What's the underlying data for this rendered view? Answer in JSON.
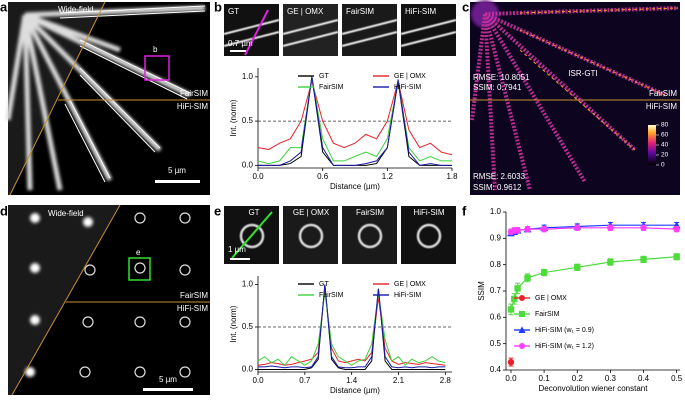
{
  "panels": {
    "a": {
      "label": "a",
      "wide_field": "Wide-field",
      "roi": "b",
      "top": "FairSIM",
      "bottom": "HiFi-SIM",
      "scale": "5 µm"
    },
    "b": {
      "label": "b",
      "tiles": [
        "GT",
        "GE | OMX",
        "FairSIM",
        "HiFi-SIM"
      ],
      "scale": "0.7 µm"
    },
    "c": {
      "label": "c",
      "title": "ISR-GTI",
      "top_rmse": "RMSE: 10.8051",
      "top_ssim": "SSIM: 0.7941",
      "top": "FairSIM",
      "bottom": "HiFi-SIM",
      "colorbar_ticks": [
        0,
        20,
        40,
        60,
        80
      ],
      "bottom_rmse": "RMSE: 2.6033",
      "bottom_ssim": "SSIM: 0.9612"
    },
    "d": {
      "label": "d",
      "wide_field": "Wide-field",
      "roi": "e",
      "top": "FairSIM",
      "bottom": "HiFi-SIM",
      "scale": "5 µm"
    },
    "e": {
      "label": "e",
      "tiles": [
        "GT",
        "GE | OMX",
        "FairSIM",
        "HiFi-SIM"
      ],
      "scale": "1 µm"
    },
    "f": {
      "label": "f"
    }
  },
  "chart_data": [
    {
      "type": "line",
      "xlabel": "Distance (µm)",
      "ylabel": "Int. (norm)",
      "legend": "upper center",
      "x": [
        0,
        0.1,
        0.2,
        0.3,
        0.4,
        0.5,
        0.6,
        0.7,
        0.8,
        0.9,
        1.0,
        1.1,
        1.2,
        1.3,
        1.4,
        1.5,
        1.6,
        1.7,
        1.8
      ],
      "series": [
        {
          "name": "GT",
          "color": "#000000",
          "values": [
            0,
            0,
            0,
            0.02,
            0.1,
            1.0,
            0.15,
            0,
            0,
            0,
            0,
            0.02,
            0.2,
            0.95,
            0.1,
            0,
            0,
            0,
            0
          ]
        },
        {
          "name": "GE | OMX",
          "color": "#e8212a",
          "values": [
            0.2,
            0.18,
            0.25,
            0.3,
            0.5,
            0.95,
            0.5,
            0.25,
            0.2,
            0.25,
            0.35,
            0.3,
            0.5,
            0.95,
            0.4,
            0.2,
            0.25,
            0.15,
            0.12
          ]
        },
        {
          "name": "FairSIM",
          "color": "#3bd23b",
          "values": [
            0.05,
            0.02,
            0.05,
            0.2,
            0.2,
            1.0,
            0.3,
            0.05,
            0.05,
            0.1,
            0.15,
            0.1,
            0.3,
            0.95,
            0.2,
            0.05,
            0.1,
            0.05,
            0.05
          ]
        },
        {
          "name": "HiFi-SIM",
          "color": "#1a1aa8",
          "values": [
            0,
            0,
            0,
            0.05,
            0.15,
            1.0,
            0.2,
            0,
            0,
            0,
            0.02,
            0.05,
            0.2,
            0.97,
            0.15,
            0,
            0.02,
            0,
            0
          ]
        }
      ],
      "reference_line": 0.5,
      "xlim": [
        0,
        1.8
      ],
      "xticks": [
        {
          "value": 0,
          "label": "0.0"
        },
        0.6,
        1.2,
        1.8
      ],
      "ylim": [
        -0.03,
        1.1
      ],
      "yticks": [
        {
          "value": 0,
          "label": "0.0"
        },
        0.5,
        {
          "value": 1,
          "label": "1.0"
        }
      ]
    },
    {
      "type": "line",
      "xlabel": "Distance (µm)",
      "ylabel": "Int. (norm)",
      "legend": "upper center",
      "x": [
        0,
        0.1,
        0.2,
        0.3,
        0.4,
        0.5,
        0.6,
        0.7,
        0.8,
        0.9,
        1.0,
        1.1,
        1.2,
        1.3,
        1.4,
        1.5,
        1.6,
        1.7,
        1.8,
        1.9,
        2.0,
        2.1,
        2.2,
        2.3,
        2.4,
        2.5,
        2.6,
        2.7,
        2.8
      ],
      "series": [
        {
          "name": "GT",
          "color": "#000000",
          "values": [
            0,
            0,
            0,
            0,
            0,
            0,
            0,
            0,
            0.02,
            0.12,
            1.0,
            0.12,
            0.02,
            0,
            0,
            0,
            0,
            0.1,
            0.95,
            0.1,
            0,
            0,
            0,
            0,
            0,
            0,
            0,
            0,
            0
          ]
        },
        {
          "name": "GE | OMX",
          "color": "#e8212a",
          "values": [
            0.05,
            0.06,
            0.08,
            0.07,
            0.05,
            0.06,
            0.08,
            0.1,
            0.12,
            0.2,
            0.95,
            0.25,
            0.1,
            0.08,
            0.1,
            0.12,
            0.1,
            0.2,
            0.85,
            0.25,
            0.1,
            0.06,
            0.08,
            0.07,
            0.06,
            0.08,
            0.07,
            0.06,
            0.05
          ]
        },
        {
          "name": "FairSIM",
          "color": "#3bd23b",
          "values": [
            0.1,
            0.15,
            0.08,
            0.12,
            0.05,
            0.15,
            0.1,
            0.05,
            0.1,
            0.3,
            0.9,
            0.3,
            0.15,
            0.1,
            0.05,
            0.1,
            0.12,
            0.3,
            0.9,
            0.35,
            0.1,
            0.15,
            0.05,
            0.12,
            0.08,
            0.1,
            0.15,
            0.1,
            0.08
          ]
        },
        {
          "name": "HiFi-SIM",
          "color": "#1a1aa8",
          "values": [
            0.03,
            0.03,
            0.04,
            0.03,
            0.02,
            0.03,
            0.03,
            0.02,
            0.03,
            0.15,
            1.0,
            0.15,
            0.03,
            0.02,
            0.02,
            0.03,
            0.03,
            0.15,
            0.95,
            0.15,
            0.03,
            0.02,
            0.03,
            0.02,
            0.03,
            0.03,
            0.02,
            0.03,
            0.03
          ]
        }
      ],
      "reference_line": 0.5,
      "xlim": [
        0,
        2.9
      ],
      "xticks": [
        {
          "value": 0,
          "label": "0.0"
        },
        0.7,
        1.4,
        2.1,
        2.8
      ],
      "ylim": [
        -0.03,
        1.1
      ],
      "yticks": [
        {
          "value": 0,
          "label": "0.0"
        },
        0.5,
        {
          "value": 1,
          "label": "1.0"
        }
      ]
    },
    {
      "type": "line",
      "xlabel": "Deconvolution wiener constant",
      "ylabel": "SSIM",
      "legend": "lower left",
      "series": [
        {
          "name": "GE | OMX",
          "color": "#e8212a",
          "marker": "circle",
          "x": [
            0
          ],
          "values": [
            0.43
          ],
          "errors": [
            0.015
          ]
        },
        {
          "name": "FairSIM",
          "color": "#4ddc3c",
          "marker": "square",
          "x": [
            0,
            0.01,
            0.02,
            0.05,
            0.1,
            0.2,
            0.3,
            0.4,
            0.5
          ],
          "values": [
            0.63,
            0.67,
            0.71,
            0.75,
            0.77,
            0.79,
            0.81,
            0.82,
            0.83
          ],
          "errors": [
            0.02,
            0.02,
            0.02,
            0.015,
            0.012,
            0.012,
            0.012,
            0.012,
            0.012
          ]
        },
        {
          "name": "HiFi-SIM (w₁ = 0.9)",
          "color": "#1e3cff",
          "marker": "triangle",
          "x": [
            0,
            0.01,
            0.02,
            0.05,
            0.1,
            0.2,
            0.3,
            0.4,
            0.5
          ],
          "values": [
            0.92,
            0.925,
            0.93,
            0.935,
            0.94,
            0.945,
            0.95,
            0.95,
            0.95
          ],
          "errors": [
            0.01,
            0.01,
            0.01,
            0.01,
            0.01,
            0.01,
            0.01,
            0.01,
            0.01
          ]
        },
        {
          "name": "HiFi-SIM (w₁ = 1.2)",
          "color": "#ff3cff",
          "marker": "circle",
          "x": [
            0,
            0.01,
            0.02,
            0.05,
            0.1,
            0.2,
            0.3,
            0.4,
            0.5
          ],
          "values": [
            0.925,
            0.93,
            0.93,
            0.935,
            0.935,
            0.94,
            0.94,
            0.94,
            0.935
          ],
          "errors": [
            0.01,
            0.01,
            0.01,
            0.01,
            0.01,
            0.01,
            0.01,
            0.01,
            0.01
          ]
        }
      ],
      "xlim": [
        -0.015,
        0.51
      ],
      "xticks": [
        {
          "value": 0,
          "label": "0.0"
        },
        0.1,
        0.2,
        0.3,
        0.4,
        0.5
      ],
      "ylim": [
        0.4,
        1.0
      ],
      "yticks": [
        0.4,
        0.5,
        0.6,
        0.7,
        0.8,
        0.9,
        {
          "value": 1,
          "label": "1.0"
        }
      ]
    }
  ]
}
